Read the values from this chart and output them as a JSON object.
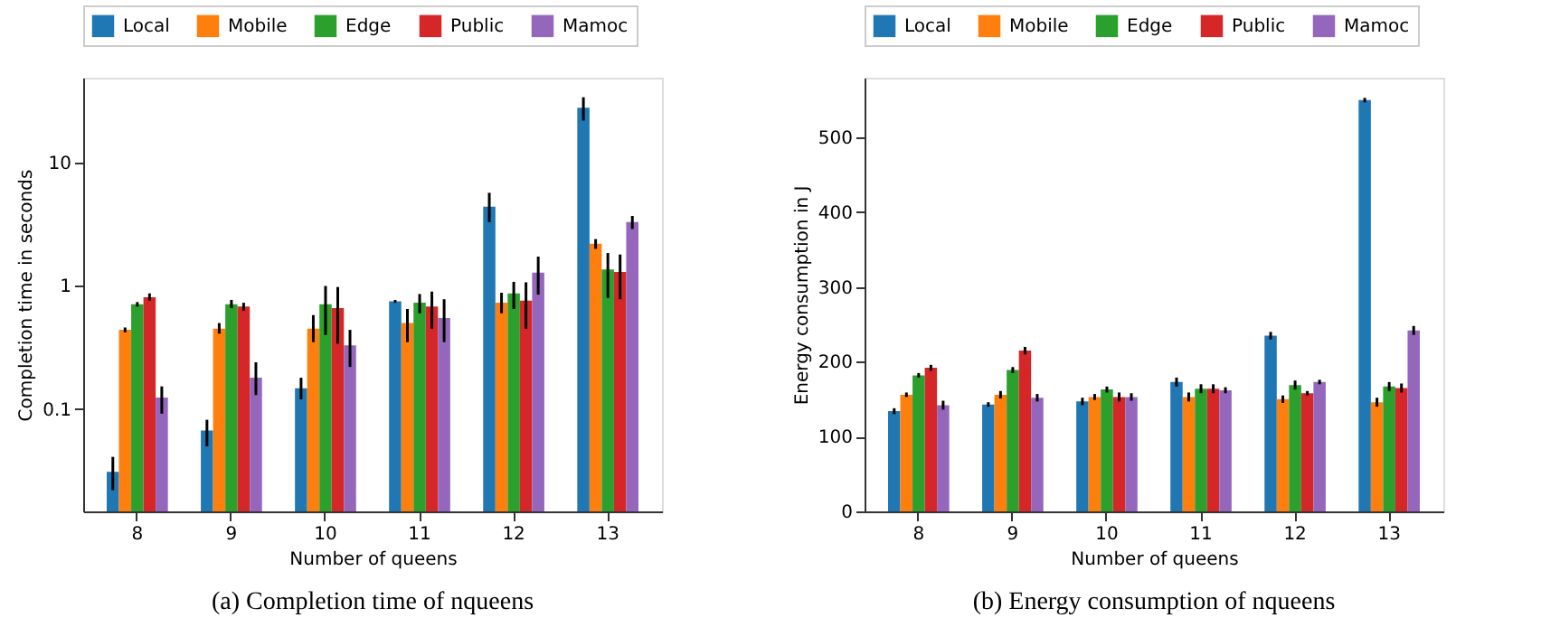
{
  "chart_data": [
    {
      "type": "bar",
      "categories": [
        "8",
        "9",
        "10",
        "11",
        "12",
        "13"
      ],
      "xlabel": "Number of queens",
      "ylabel": "Completion time in seconds",
      "log": true,
      "ylim": [
        0.0148,
        49
      ],
      "yticks": [
        0.1,
        1,
        10
      ],
      "grid": false,
      "legend": "top",
      "annotations": [
        "(a) Completion time of nqueens"
      ],
      "series": [
        {
          "name": "Local",
          "color": "#1f77b4",
          "values": [
            0.031,
            0.067,
            0.148,
            0.75,
            4.4,
            28
          ],
          "errors": [
            [
              0.022,
              0.041
            ],
            [
              0.05,
              0.082
            ],
            [
              0.12,
              0.18
            ],
            [
              0.73,
              0.77
            ],
            [
              3.3,
              5.7
            ],
            [
              22,
              34
            ]
          ]
        },
        {
          "name": "Mobile",
          "color": "#ff7f0e",
          "values": [
            0.44,
            0.45,
            0.45,
            0.5,
            0.73,
            2.2
          ],
          "errors": [
            [
              0.42,
              0.46
            ],
            [
              0.41,
              0.5
            ],
            [
              0.35,
              0.58
            ],
            [
              0.35,
              0.65
            ],
            [
              0.6,
              0.88
            ],
            [
              2.0,
              2.4
            ]
          ]
        },
        {
          "name": "Edge",
          "color": "#2ca02c",
          "values": [
            0.71,
            0.71,
            0.71,
            0.73,
            0.87,
            1.36
          ],
          "errors": [
            [
              0.68,
              0.74
            ],
            [
              0.66,
              0.77
            ],
            [
              0.4,
              1.0
            ],
            [
              0.6,
              0.86
            ],
            [
              0.65,
              1.08
            ],
            [
              0.8,
              1.85
            ]
          ]
        },
        {
          "name": "Public",
          "color": "#d62728",
          "values": [
            0.81,
            0.68,
            0.66,
            0.68,
            0.76,
            1.3
          ],
          "errors": [
            [
              0.76,
              0.87
            ],
            [
              0.63,
              0.73
            ],
            [
              0.34,
              0.98
            ],
            [
              0.45,
              0.9
            ],
            [
              0.45,
              1.07
            ],
            [
              0.78,
              1.8
            ]
          ]
        },
        {
          "name": "Mamoc",
          "color": "#9467bd",
          "values": [
            0.124,
            0.18,
            0.33,
            0.55,
            1.28,
            3.3
          ],
          "errors": [
            [
              0.092,
              0.153
            ],
            [
              0.13,
              0.24
            ],
            [
              0.22,
              0.44
            ],
            [
              0.35,
              0.78
            ],
            [
              0.85,
              1.73
            ],
            [
              2.9,
              3.7
            ]
          ]
        }
      ]
    },
    {
      "type": "bar",
      "categories": [
        "8",
        "9",
        "10",
        "11",
        "12",
        "13"
      ],
      "xlabel": "Number of queens",
      "ylabel": "Energy consumption in J",
      "ylim": [
        0,
        580
      ],
      "yticks": [
        0,
        100,
        200,
        300,
        400,
        500
      ],
      "grid": false,
      "legend": "top",
      "annotations": [
        "(b) Energy consumption of nqueens"
      ],
      "series": [
        {
          "name": "Local",
          "color": "#1f77b4",
          "values": [
            134,
            143,
            147,
            173,
            235,
            550
          ],
          "errors": [
            4,
            3,
            5,
            6,
            5,
            3
          ]
        },
        {
          "name": "Mobile",
          "color": "#ff7f0e",
          "values": [
            156,
            156,
            153,
            153,
            150,
            146
          ],
          "errors": [
            3,
            5,
            4,
            6,
            5,
            6
          ]
        },
        {
          "name": "Edge",
          "color": "#2ca02c",
          "values": [
            182,
            189,
            163,
            164,
            169,
            167
          ],
          "errors": [
            3,
            4,
            4,
            6,
            6,
            6
          ]
        },
        {
          "name": "Public",
          "color": "#d62728",
          "values": [
            192,
            215,
            153,
            164,
            158,
            165
          ],
          "errors": [
            4,
            5,
            6,
            6,
            3,
            6
          ]
        },
        {
          "name": "Mamoc",
          "color": "#9467bd",
          "values": [
            142,
            152,
            153,
            162,
            173,
            242
          ],
          "errors": [
            6,
            5,
            5,
            4,
            3,
            6
          ]
        }
      ]
    }
  ]
}
